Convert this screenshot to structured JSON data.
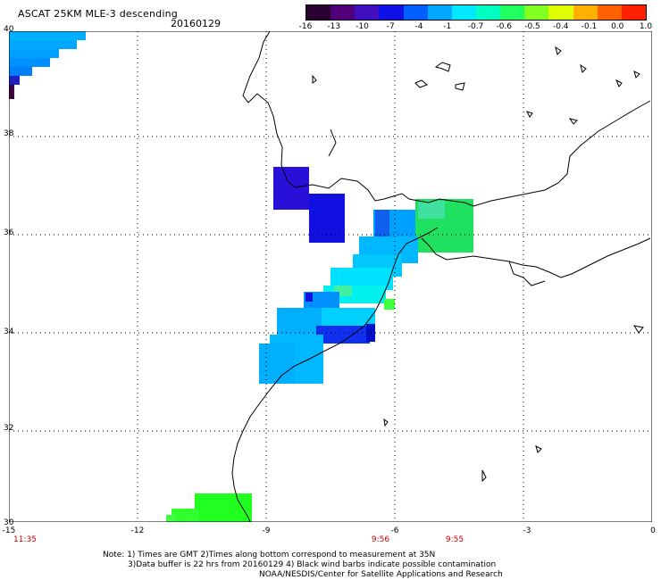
{
  "header": {
    "title": "ASCAT 25KM MLE-3 descending",
    "date": "20160129"
  },
  "colorbar": {
    "tick_labels": [
      "-16",
      "-13",
      "-10",
      "-7",
      "-4",
      "-1",
      "-0.7",
      "-0.6",
      "-0.5",
      "-0.4",
      "-0.1",
      "0.0",
      "1.0"
    ],
    "colors": [
      "#2a0030",
      "#50007a",
      "#4010c0",
      "#1010e8",
      "#0060ff",
      "#00a8ff",
      "#00e8ff",
      "#00ffc0",
      "#20ff60",
      "#80ff20",
      "#e0ff00",
      "#ffb000",
      "#ff6000",
      "#ff2000"
    ]
  },
  "axes": {
    "lon_labels": [
      "-15",
      "-12",
      "-9",
      "-6",
      "-3",
      "0"
    ],
    "lat_labels": [
      "40",
      "38",
      "36",
      "34",
      "32",
      "30"
    ]
  },
  "times": [
    "11:35",
    "9:56",
    "9:55"
  ],
  "notes": {
    "line1": "Note: 1) Times are GMT 2)Times along bottom correspond to measurement at 35N",
    "line2": "3)Data buffer is 22 hrs from 20160129 4) Black wind barbs indicate possible contamination",
    "line3": "NOAA/NESDIS/Center for Satellite Applications and Research"
  },
  "palette": {
    "background": "#ffffff",
    "coastline": "#000000",
    "grid": "#000000",
    "time_color": "#cc0000"
  }
}
